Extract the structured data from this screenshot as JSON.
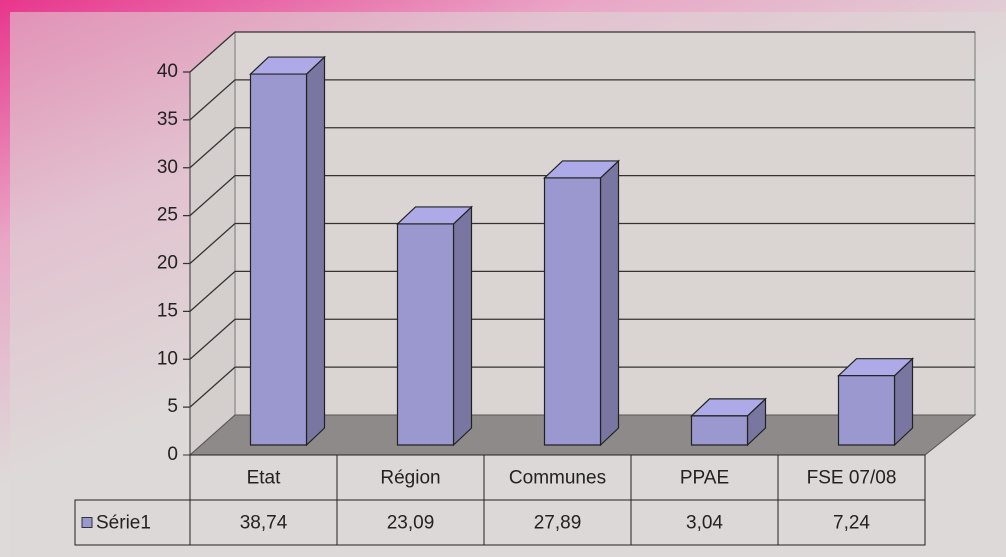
{
  "chart_data": {
    "type": "bar3d",
    "categories": [
      "Etat",
      "Région",
      "Communes",
      "PPAE",
      "FSE 07/08"
    ],
    "series": [
      {
        "name": "Série1",
        "color": "#9b98cf",
        "values": [
          38.74,
          23.09,
          27.89,
          3.04,
          7.24
        ],
        "value_labels": [
          "38,74",
          "23,09",
          "27,89",
          "3,04",
          "7,24"
        ]
      }
    ],
    "ylim": [
      0,
      40
    ],
    "yticks": [
      0,
      5,
      10,
      15,
      20,
      25,
      30,
      35,
      40
    ],
    "grid": true
  }
}
